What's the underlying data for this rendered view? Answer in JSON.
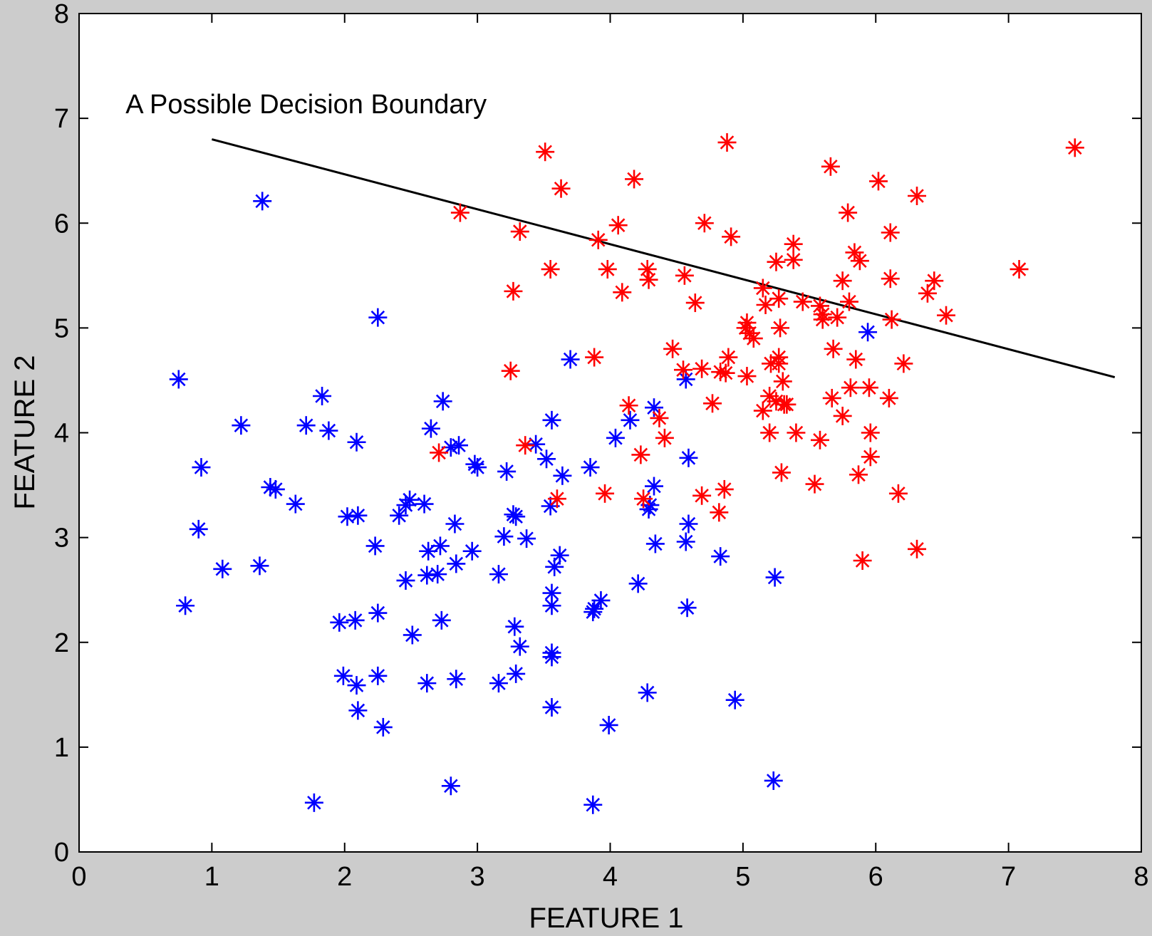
{
  "chart_data": {
    "type": "scatter",
    "title": "",
    "xlabel": "FEATURE 1",
    "ylabel": "FEATURE 2",
    "xlim": [
      0,
      8
    ],
    "ylim": [
      0,
      8
    ],
    "xticks": [
      "0",
      "1",
      "2",
      "3",
      "4",
      "5",
      "6",
      "7",
      "8"
    ],
    "yticks": [
      "0",
      "1",
      "2",
      "3",
      "4",
      "5",
      "6",
      "7",
      "8"
    ],
    "grid": false,
    "marker": "asterisk",
    "annotation": {
      "text": "A Possible Decision Boundary",
      "x": 0.35,
      "y": 7.05
    },
    "decision_boundary": {
      "x": [
        1.0,
        7.8
      ],
      "y": [
        6.8,
        4.53
      ]
    },
    "series": [
      {
        "color": "#0000ff",
        "points": [
          [
            1.38,
            6.21
          ],
          [
            2.25,
            5.1
          ],
          [
            0.75,
            4.51
          ],
          [
            1.83,
            4.35
          ],
          [
            1.22,
            4.07
          ],
          [
            1.71,
            4.07
          ],
          [
            1.88,
            4.02
          ],
          [
            2.09,
            3.91
          ],
          [
            0.92,
            3.67
          ],
          [
            1.44,
            3.48
          ],
          [
            1.48,
            3.46
          ],
          [
            1.63,
            3.32
          ],
          [
            2.02,
            3.2
          ],
          [
            2.1,
            3.21
          ],
          [
            0.9,
            3.08
          ],
          [
            1.08,
            2.7
          ],
          [
            1.36,
            2.73
          ],
          [
            0.8,
            2.35
          ],
          [
            2.23,
            2.92
          ],
          [
            2.25,
            2.28
          ],
          [
            2.08,
            2.21
          ],
          [
            1.96,
            2.19
          ],
          [
            1.99,
            1.68
          ],
          [
            2.09,
            1.59
          ],
          [
            2.1,
            1.35
          ],
          [
            2.25,
            1.68
          ],
          [
            2.29,
            1.19
          ],
          [
            1.77,
            0.47
          ],
          [
            2.41,
            3.21
          ],
          [
            2.46,
            3.31
          ],
          [
            2.49,
            3.36
          ],
          [
            2.6,
            3.32
          ],
          [
            2.46,
            2.59
          ],
          [
            2.51,
            2.07
          ],
          [
            2.63,
            2.87
          ],
          [
            2.62,
            2.64
          ],
          [
            2.7,
            2.65
          ],
          [
            2.72,
            2.92
          ],
          [
            2.73,
            2.21
          ],
          [
            2.62,
            1.61
          ],
          [
            2.84,
            1.65
          ],
          [
            2.8,
            0.63
          ],
          [
            2.65,
            4.04
          ],
          [
            2.74,
            4.3
          ],
          [
            2.8,
            3.86
          ],
          [
            2.86,
            3.88
          ],
          [
            2.83,
            3.13
          ],
          [
            2.84,
            2.75
          ],
          [
            2.96,
            2.87
          ],
          [
            2.98,
            3.7
          ],
          [
            3.0,
            3.67
          ],
          [
            3.16,
            2.65
          ],
          [
            3.2,
            3.01
          ],
          [
            3.22,
            3.63
          ],
          [
            3.27,
            3.22
          ],
          [
            3.29,
            3.2
          ],
          [
            3.28,
            2.15
          ],
          [
            3.32,
            1.96
          ],
          [
            3.29,
            1.7
          ],
          [
            3.16,
            1.61
          ],
          [
            3.37,
            2.99
          ],
          [
            3.44,
            3.89
          ],
          [
            3.52,
            3.75
          ],
          [
            3.55,
            3.3
          ],
          [
            3.56,
            4.12
          ],
          [
            3.56,
            2.47
          ],
          [
            3.56,
            2.35
          ],
          [
            3.56,
            1.9
          ],
          [
            3.56,
            1.86
          ],
          [
            3.56,
            1.38
          ],
          [
            3.58,
            2.72
          ],
          [
            3.62,
            2.83
          ],
          [
            3.64,
            3.59
          ],
          [
            3.7,
            4.7
          ],
          [
            3.85,
            3.67
          ],
          [
            3.87,
            2.29
          ],
          [
            3.88,
            2.32
          ],
          [
            3.93,
            2.4
          ],
          [
            3.87,
            0.45
          ],
          [
            3.99,
            1.21
          ],
          [
            4.04,
            3.95
          ],
          [
            4.15,
            4.12
          ],
          [
            4.21,
            2.56
          ],
          [
            4.29,
            3.27
          ],
          [
            4.3,
            3.31
          ],
          [
            4.33,
            3.49
          ],
          [
            4.33,
            4.24
          ],
          [
            4.34,
            2.94
          ],
          [
            4.28,
            1.52
          ],
          [
            4.57,
            4.51
          ],
          [
            4.59,
            3.76
          ],
          [
            4.59,
            3.13
          ],
          [
            4.57,
            2.96
          ],
          [
            4.58,
            2.33
          ],
          [
            4.83,
            2.82
          ],
          [
            4.94,
            1.45
          ],
          [
            5.24,
            2.62
          ],
          [
            5.23,
            0.68
          ],
          [
            5.94,
            4.96
          ]
        ]
      },
      {
        "color": "#ff0000",
        "points": [
          [
            3.51,
            6.68
          ],
          [
            3.63,
            6.33
          ],
          [
            4.18,
            6.42
          ],
          [
            4.88,
            6.77
          ],
          [
            5.66,
            6.54
          ],
          [
            6.02,
            6.4
          ],
          [
            6.31,
            6.26
          ],
          [
            7.5,
            6.72
          ],
          [
            2.87,
            6.1
          ],
          [
            3.32,
            5.92
          ],
          [
            3.91,
            5.84
          ],
          [
            4.06,
            5.98
          ],
          [
            4.71,
            6.0
          ],
          [
            4.91,
            5.87
          ],
          [
            5.79,
            6.1
          ],
          [
            6.11,
            5.91
          ],
          [
            3.55,
            5.56
          ],
          [
            3.98,
            5.56
          ],
          [
            4.28,
            5.56
          ],
          [
            4.29,
            5.46
          ],
          [
            4.56,
            5.5
          ],
          [
            5.25,
            5.63
          ],
          [
            5.38,
            5.8
          ],
          [
            5.38,
            5.65
          ],
          [
            5.84,
            5.72
          ],
          [
            5.88,
            5.64
          ],
          [
            5.75,
            5.45
          ],
          [
            6.11,
            5.47
          ],
          [
            6.44,
            5.45
          ],
          [
            7.08,
            5.56
          ],
          [
            3.27,
            5.35
          ],
          [
            4.09,
            5.34
          ],
          [
            4.64,
            5.24
          ],
          [
            5.15,
            5.38
          ],
          [
            5.17,
            5.22
          ],
          [
            5.27,
            5.28
          ],
          [
            5.45,
            5.25
          ],
          [
            5.58,
            5.21
          ],
          [
            5.6,
            5.13
          ],
          [
            5.6,
            5.08
          ],
          [
            5.71,
            5.1
          ],
          [
            5.8,
            5.25
          ],
          [
            6.12,
            5.08
          ],
          [
            6.39,
            5.33
          ],
          [
            6.53,
            5.12
          ],
          [
            5.03,
            5.05
          ],
          [
            5.02,
            5.0
          ],
          [
            5.05,
            4.95
          ],
          [
            5.08,
            4.9
          ],
          [
            5.28,
            5.0
          ],
          [
            5.68,
            4.8
          ],
          [
            5.85,
            4.7
          ],
          [
            6.21,
            4.66
          ],
          [
            3.25,
            4.59
          ],
          [
            3.88,
            4.72
          ],
          [
            4.47,
            4.8
          ],
          [
            4.55,
            4.6
          ],
          [
            4.69,
            4.61
          ],
          [
            4.83,
            4.58
          ],
          [
            4.87,
            4.57
          ],
          [
            4.89,
            4.72
          ],
          [
            5.03,
            4.54
          ],
          [
            5.21,
            4.66
          ],
          [
            5.27,
            4.66
          ],
          [
            5.27,
            4.72
          ],
          [
            5.3,
            4.49
          ],
          [
            5.15,
            4.21
          ],
          [
            5.2,
            4.35
          ],
          [
            5.25,
            4.3
          ],
          [
            5.31,
            4.27
          ],
          [
            5.33,
            4.27
          ],
          [
            5.67,
            4.33
          ],
          [
            5.75,
            4.16
          ],
          [
            5.81,
            4.43
          ],
          [
            5.95,
            4.43
          ],
          [
            6.1,
            4.33
          ],
          [
            4.14,
            4.26
          ],
          [
            4.37,
            4.14
          ],
          [
            4.41,
            3.95
          ],
          [
            4.77,
            4.28
          ],
          [
            5.2,
            4.0
          ],
          [
            5.4,
            4.0
          ],
          [
            5.58,
            3.93
          ],
          [
            5.96,
            4.0
          ],
          [
            5.96,
            3.77
          ],
          [
            3.36,
            3.88
          ],
          [
            2.71,
            3.81
          ],
          [
            4.23,
            3.79
          ],
          [
            5.29,
            3.62
          ],
          [
            5.87,
            3.6
          ],
          [
            3.6,
            3.37
          ],
          [
            3.96,
            3.42
          ],
          [
            4.25,
            3.37
          ],
          [
            4.69,
            3.4
          ],
          [
            4.82,
            3.24
          ],
          [
            4.86,
            3.46
          ],
          [
            5.54,
            3.51
          ],
          [
            6.17,
            3.42
          ],
          [
            6.31,
            2.89
          ],
          [
            5.9,
            2.78
          ]
        ]
      }
    ]
  }
}
